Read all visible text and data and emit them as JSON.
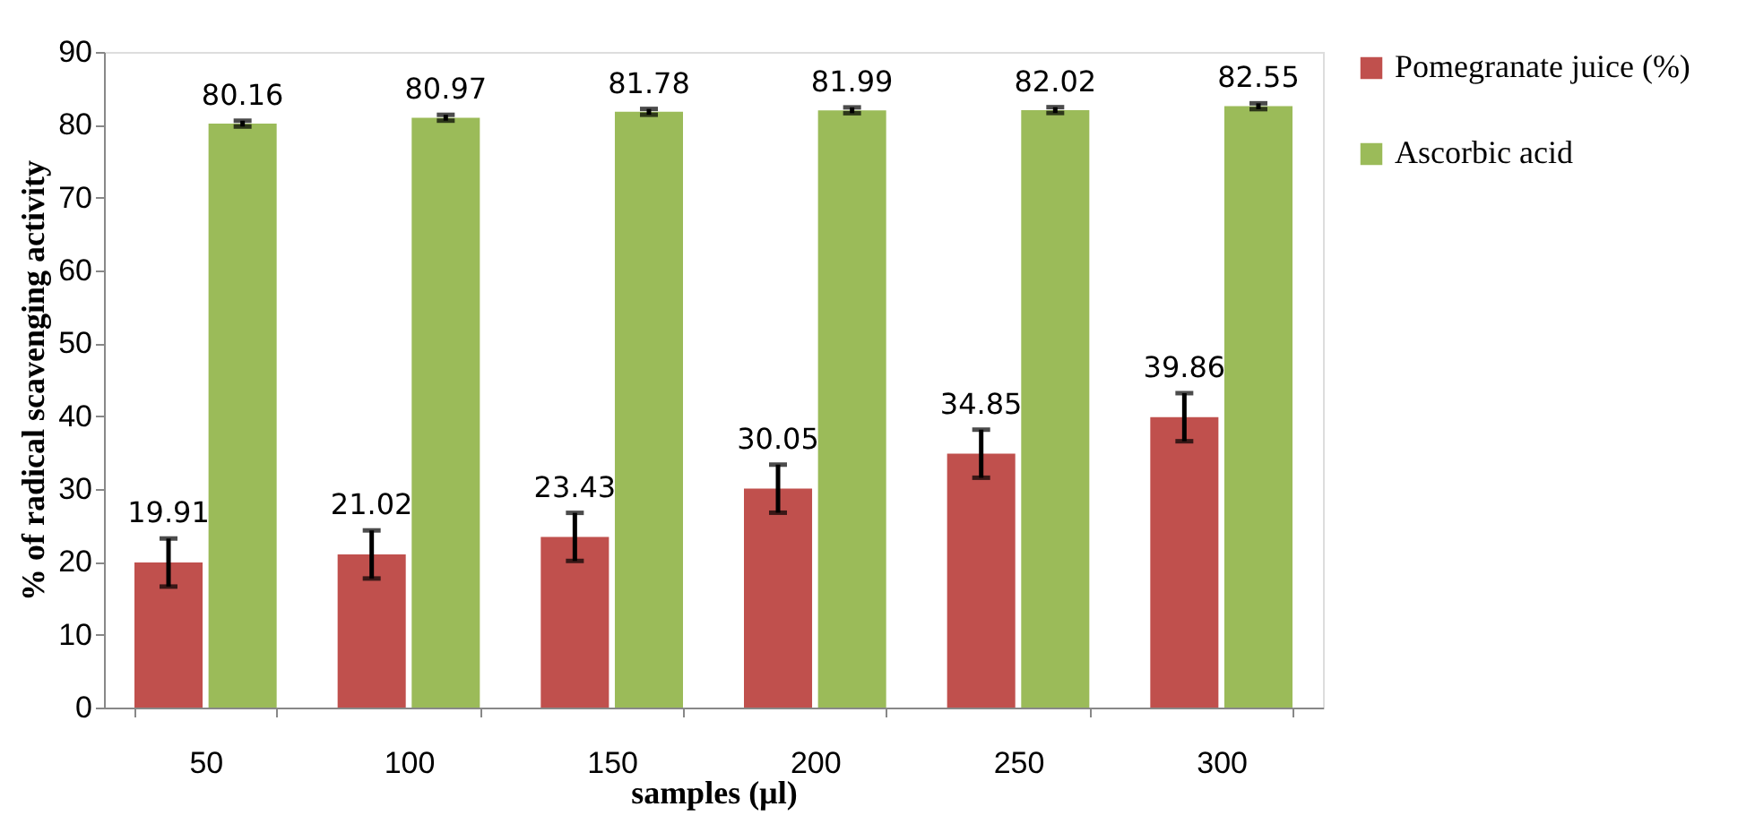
{
  "chart_data": {
    "type": "bar",
    "xlabel": "samples (µl)",
    "ylabel": "% of radical scavenging activity",
    "categories": [
      "50",
      "100",
      "150",
      "200",
      "250",
      "300"
    ],
    "series": [
      {
        "name": "Pomegranate juice (%)",
        "color": "#c0504d",
        "values": [
          19.91,
          21.02,
          23.43,
          30.05,
          34.85,
          39.86
        ],
        "errors": [
          3.3,
          3.3,
          3.3,
          3.3,
          3.3,
          3.3
        ]
      },
      {
        "name": "Ascorbic acid",
        "color": "#9bbb59",
        "values": [
          80.16,
          80.97,
          81.78,
          81.99,
          82.02,
          82.55
        ],
        "errors": [
          0.4,
          0.4,
          0.4,
          0.4,
          0.4,
          0.4
        ]
      }
    ],
    "ylim": [
      0,
      90
    ],
    "yticks": [
      0,
      10,
      20,
      30,
      40,
      50,
      60,
      70,
      80,
      90
    ],
    "grid": false,
    "legend": "right",
    "data_labels": true
  }
}
